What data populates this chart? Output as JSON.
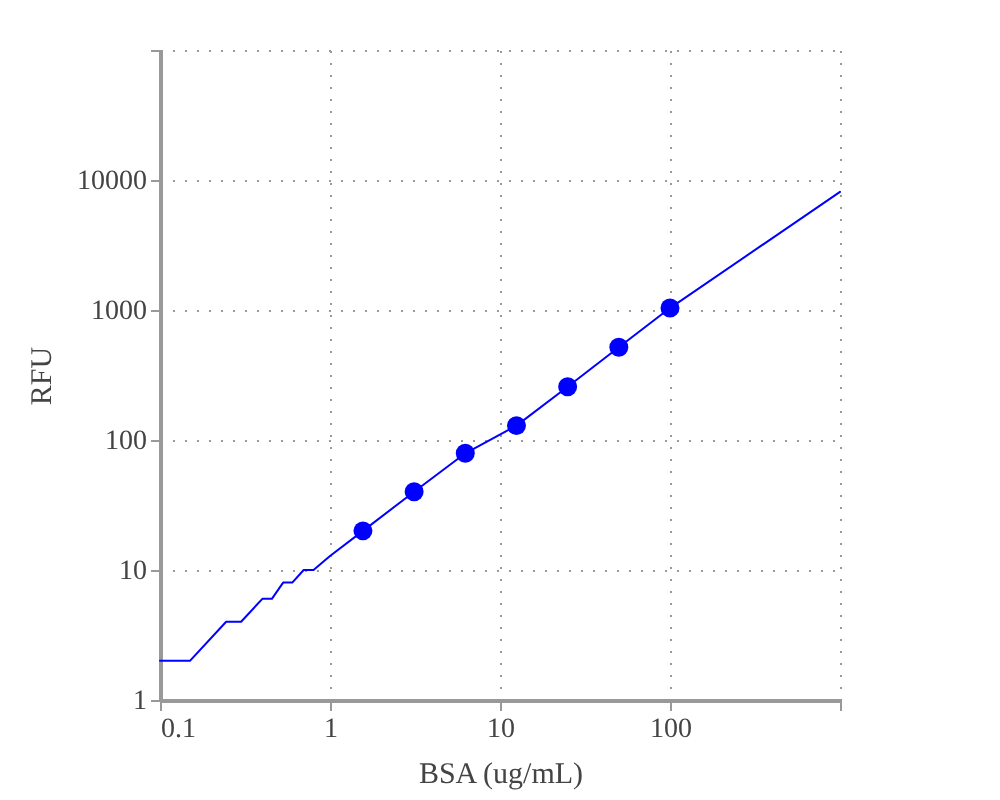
{
  "chart_data": {
    "type": "scatter",
    "xlabel": "BSA (ug/mL)",
    "ylabel": "RFU",
    "log": "xy",
    "xlim": [
      0.1,
      1000
    ],
    "ylim": [
      1,
      100000
    ],
    "xticks": [
      0.1,
      1,
      10,
      100,
      {
        "value": 1000,
        "label": null
      }
    ],
    "yticks": [
      1,
      10,
      100,
      1000,
      10000,
      {
        "value": 100000,
        "label": null
      }
    ],
    "grid": true,
    "series": [
      {
        "type": "line",
        "color": "#0000ff",
        "line_style": "solid",
        "x": [
          0.1,
          0.15,
          0.245,
          0.3,
          0.4,
          0.455,
          0.53,
          0.6,
          0.7,
          0.8,
          1,
          1.5625,
          3.125,
          6.25,
          12.5,
          25,
          50,
          100,
          1000
        ],
        "values": [
          2,
          2,
          4,
          4,
          6,
          6,
          8,
          8,
          10,
          10,
          12.8,
          20,
          40,
          79,
          129,
          257,
          517,
          1035,
          8100
        ]
      },
      {
        "marker": "circle",
        "color": "#0000ff",
        "x": [
          1.5625,
          3.125,
          6.25,
          12.5,
          25,
          50,
          100
        ],
        "values": [
          20,
          40,
          79,
          129,
          257,
          517,
          1035
        ]
      }
    ]
  }
}
